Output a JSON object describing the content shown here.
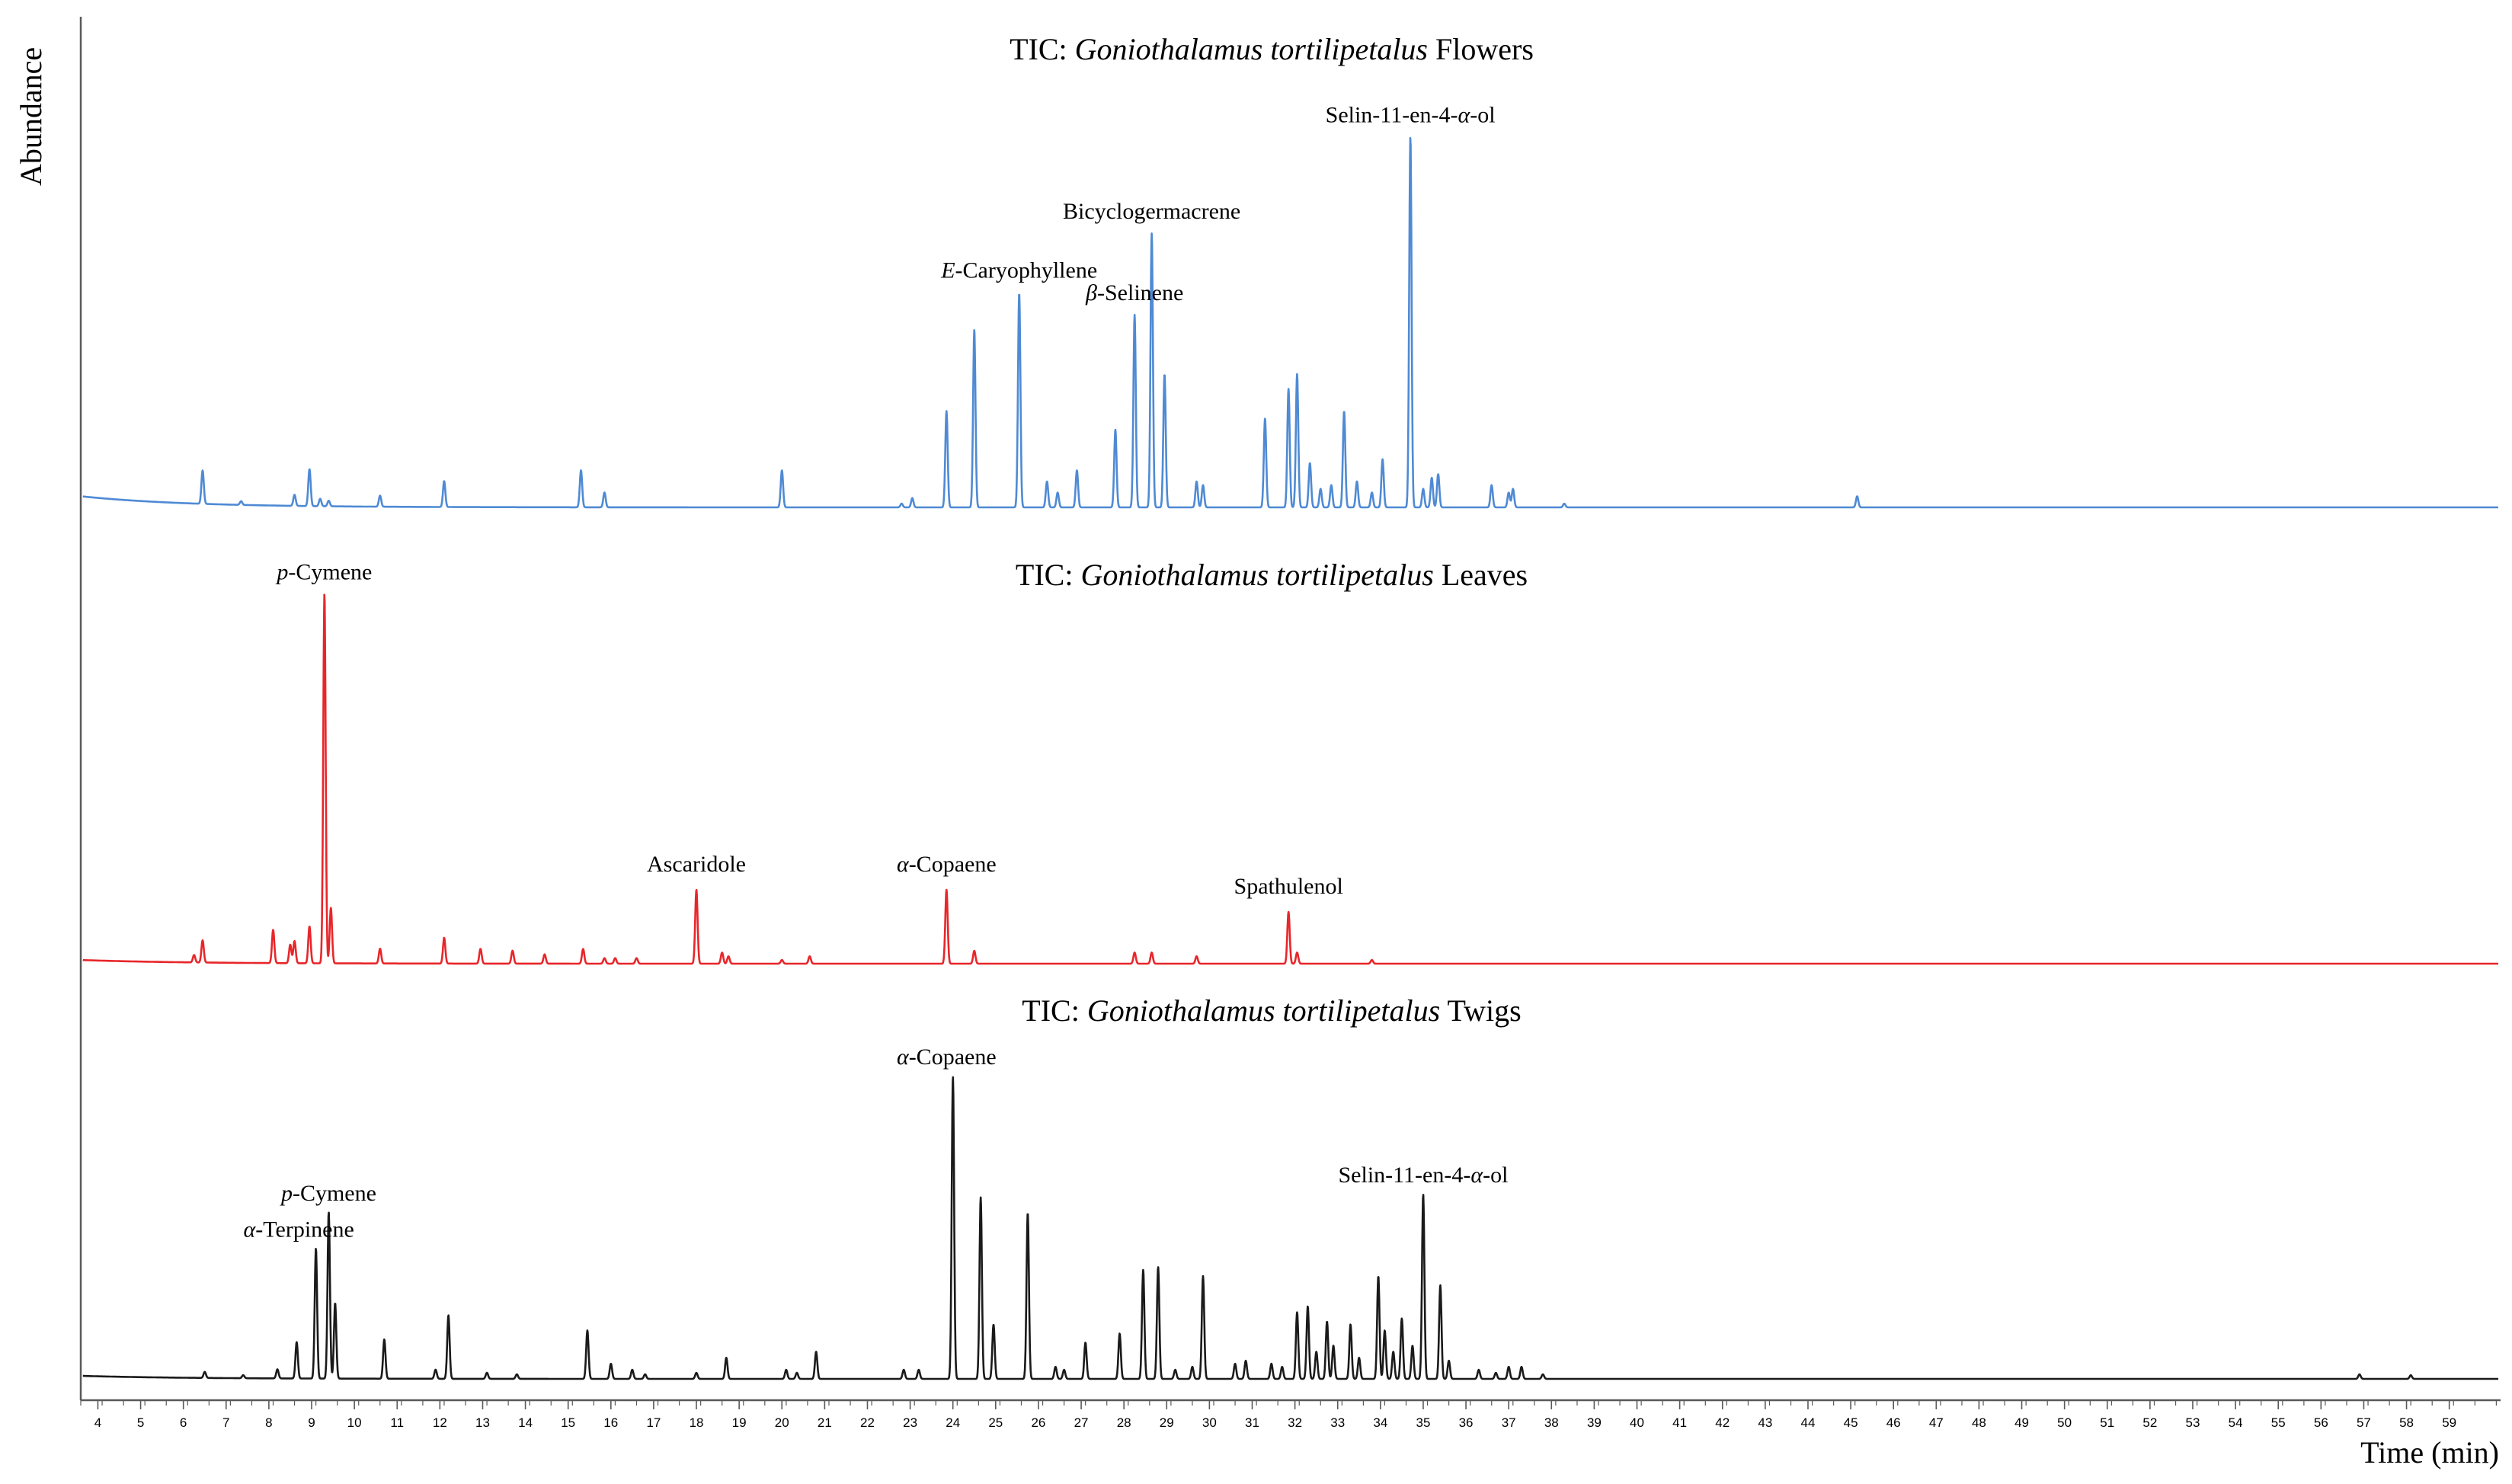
{
  "chart_data": {
    "type": "line",
    "ylabel": "Abundance",
    "xlabel": "Time (min)",
    "xlim": [
      3.6,
      60.2
    ],
    "x_ticks": [
      4,
      5,
      6,
      7,
      8,
      9,
      10,
      11,
      12,
      13,
      14,
      15,
      16,
      17,
      18,
      19,
      20,
      21,
      22,
      23,
      24,
      25,
      26,
      27,
      28,
      29,
      30,
      31,
      32,
      33,
      34,
      35,
      36,
      37,
      38,
      39,
      40,
      41,
      42,
      43,
      44,
      45,
      46,
      47,
      48,
      49,
      50,
      51,
      52,
      53,
      54,
      55,
      56,
      57,
      58,
      59
    ],
    "series": [
      {
        "name": "Flowers",
        "color": "#4f8ad4",
        "title": {
          "prefix": "TIC:  ",
          "species": "Goniothalamus tortilipetalus",
          "suffix": " Flowers"
        },
        "baseline": 0.03,
        "peaks": [
          [
            6.45,
            0.09
          ],
          [
            7.35,
            0.01
          ],
          [
            8.6,
            0.03
          ],
          [
            8.95,
            0.1
          ],
          [
            9.2,
            0.02
          ],
          [
            9.4,
            0.015
          ],
          [
            10.6,
            0.03
          ],
          [
            12.1,
            0.07
          ],
          [
            15.3,
            0.1
          ],
          [
            15.85,
            0.04
          ],
          [
            20.0,
            0.1
          ],
          [
            22.8,
            0.01
          ],
          [
            23.05,
            0.025
          ],
          [
            23.85,
            0.26
          ],
          [
            24.5,
            0.48
          ],
          [
            25.55,
            0.58
          ],
          [
            26.2,
            0.07
          ],
          [
            26.45,
            0.04
          ],
          [
            26.9,
            0.1
          ],
          [
            27.8,
            0.21
          ],
          [
            28.25,
            0.52
          ],
          [
            28.65,
            0.74
          ],
          [
            28.95,
            0.36
          ],
          [
            29.7,
            0.07
          ],
          [
            29.85,
            0.06
          ],
          [
            31.3,
            0.24
          ],
          [
            31.85,
            0.32
          ],
          [
            32.05,
            0.36
          ],
          [
            32.35,
            0.12
          ],
          [
            32.6,
            0.05
          ],
          [
            32.85,
            0.06
          ],
          [
            33.15,
            0.26
          ],
          [
            33.45,
            0.07
          ],
          [
            33.8,
            0.04
          ],
          [
            34.05,
            0.13
          ],
          [
            34.7,
            1.0
          ],
          [
            35.0,
            0.05
          ],
          [
            35.2,
            0.08
          ],
          [
            35.35,
            0.09
          ],
          [
            36.6,
            0.06
          ],
          [
            37.0,
            0.04
          ],
          [
            37.1,
            0.05
          ],
          [
            38.3,
            0.01
          ],
          [
            45.15,
            0.03
          ]
        ],
        "labels": [
          {
            "text": "Selin-11-en-4-α-ol",
            "x": 34.7,
            "y": 1.04
          },
          {
            "text": "Bicyclogermacrene",
            "x": 28.65,
            "y": 0.78
          },
          {
            "text": "E-Caryophyllene",
            "x": 25.55,
            "y": 0.62
          },
          {
            "text": "β-Selinene",
            "x": 28.25,
            "y": 0.56
          }
        ]
      },
      {
        "name": "Leaves",
        "color": "#e8262a",
        "title": {
          "prefix": "TIC:  ",
          "species": "Goniothalamus tortilipetalus",
          "suffix": " Leaves"
        },
        "baseline": 0.01,
        "peaks": [
          [
            6.25,
            0.02
          ],
          [
            6.45,
            0.06
          ],
          [
            8.1,
            0.09
          ],
          [
            8.5,
            0.05
          ],
          [
            8.6,
            0.06
          ],
          [
            8.95,
            0.1
          ],
          [
            9.3,
            1.0
          ],
          [
            9.45,
            0.15
          ],
          [
            10.6,
            0.04
          ],
          [
            12.1,
            0.07
          ],
          [
            12.95,
            0.04
          ],
          [
            13.7,
            0.035
          ],
          [
            14.45,
            0.025
          ],
          [
            15.35,
            0.04
          ],
          [
            15.85,
            0.015
          ],
          [
            16.1,
            0.015
          ],
          [
            16.6,
            0.015
          ],
          [
            18.0,
            0.2
          ],
          [
            18.6,
            0.03
          ],
          [
            18.75,
            0.02
          ],
          [
            20.0,
            0.01
          ],
          [
            20.65,
            0.02
          ],
          [
            23.85,
            0.2
          ],
          [
            24.5,
            0.035
          ],
          [
            28.25,
            0.03
          ],
          [
            28.65,
            0.03
          ],
          [
            29.7,
            0.02
          ],
          [
            31.85,
            0.14
          ],
          [
            32.05,
            0.03
          ],
          [
            33.8,
            0.01
          ]
        ],
        "labels": [
          {
            "text": "p-Cymene",
            "x": 9.3,
            "y": 1.04
          },
          {
            "text": "Ascaridole",
            "x": 18.0,
            "y": 0.25
          },
          {
            "text": "α-Copaene",
            "x": 23.85,
            "y": 0.25
          },
          {
            "text": "Spathulenol",
            "x": 31.85,
            "y": 0.19
          }
        ]
      },
      {
        "name": "Twigs",
        "color": "#1a1a1a",
        "title": {
          "prefix": "TIC:  ",
          "species": "Goniothalamus tortilipetalus",
          "suffix": " Twigs"
        },
        "baseline": 0.01,
        "peaks": [
          [
            6.5,
            0.02
          ],
          [
            7.4,
            0.01
          ],
          [
            8.2,
            0.03
          ],
          [
            8.65,
            0.12
          ],
          [
            9.1,
            0.43
          ],
          [
            9.4,
            0.55
          ],
          [
            9.55,
            0.25
          ],
          [
            10.7,
            0.13
          ],
          [
            11.9,
            0.03
          ],
          [
            12.2,
            0.21
          ],
          [
            13.1,
            0.02
          ],
          [
            13.8,
            0.015
          ],
          [
            15.45,
            0.16
          ],
          [
            16.0,
            0.05
          ],
          [
            16.5,
            0.03
          ],
          [
            16.8,
            0.015
          ],
          [
            18.0,
            0.02
          ],
          [
            18.7,
            0.07
          ],
          [
            20.1,
            0.03
          ],
          [
            20.35,
            0.02
          ],
          [
            20.8,
            0.09
          ],
          [
            22.85,
            0.03
          ],
          [
            23.2,
            0.03
          ],
          [
            24.0,
            1.0
          ],
          [
            24.65,
            0.6
          ],
          [
            24.95,
            0.18
          ],
          [
            25.75,
            0.55
          ],
          [
            26.4,
            0.04
          ],
          [
            26.6,
            0.03
          ],
          [
            27.1,
            0.12
          ],
          [
            27.9,
            0.15
          ],
          [
            28.45,
            0.36
          ],
          [
            28.8,
            0.37
          ],
          [
            29.2,
            0.03
          ],
          [
            29.6,
            0.04
          ],
          [
            29.85,
            0.34
          ],
          [
            30.6,
            0.05
          ],
          [
            30.85,
            0.06
          ],
          [
            31.45,
            0.05
          ],
          [
            31.7,
            0.04
          ],
          [
            32.05,
            0.22
          ],
          [
            32.3,
            0.24
          ],
          [
            32.5,
            0.09
          ],
          [
            32.75,
            0.19
          ],
          [
            32.9,
            0.11
          ],
          [
            33.3,
            0.18
          ],
          [
            33.5,
            0.07
          ],
          [
            33.95,
            0.34
          ],
          [
            34.1,
            0.16
          ],
          [
            34.3,
            0.09
          ],
          [
            34.5,
            0.2
          ],
          [
            34.75,
            0.11
          ],
          [
            35.0,
            0.61
          ],
          [
            35.4,
            0.31
          ],
          [
            35.6,
            0.06
          ],
          [
            36.3,
            0.03
          ],
          [
            36.7,
            0.02
          ],
          [
            37.0,
            0.04
          ],
          [
            37.3,
            0.04
          ],
          [
            37.8,
            0.015
          ],
          [
            56.9,
            0.015
          ],
          [
            58.1,
            0.012
          ]
        ],
        "labels": [
          {
            "text": "α-Copaene",
            "x": 23.85,
            "y": 1.04
          },
          {
            "text": "p-Cymene",
            "x": 9.4,
            "y": 0.59
          },
          {
            "text": "α-Terpinene",
            "x": 8.7,
            "y": 0.47
          },
          {
            "text": "Selin-11-en-4-α-ol",
            "x": 35.0,
            "y": 0.65
          }
        ]
      }
    ]
  }
}
